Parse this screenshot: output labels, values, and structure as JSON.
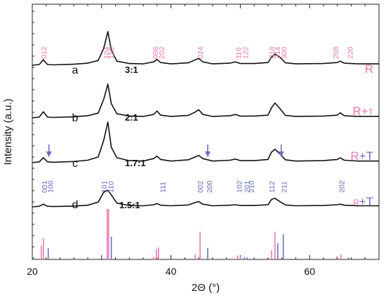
{
  "chart_data": {
    "type": "line",
    "title": "",
    "xlabel": "2Θ (°)",
    "ylabel": "Intensity (a.u.)",
    "xlim": [
      20,
      70
    ],
    "xticks": [
      20,
      40,
      60
    ],
    "yticks_labeled": false,
    "grid": false,
    "colors": {
      "line": "#111111",
      "R": "#e879b0",
      "T": "#6a6fc4",
      "label": "#111111"
    },
    "series": [
      {
        "letter": "a",
        "ratio": "3:1",
        "phase": [
          "R"
        ],
        "x": [
          20,
          21,
          21.6,
          22.2,
          23,
          26,
          28,
          29.5,
          30.3,
          30.9,
          31.4,
          32.2,
          34,
          36,
          37.5,
          38,
          38.5,
          40,
          42.5,
          43.5,
          44,
          44.6,
          46,
          48.5,
          49.3,
          50,
          52,
          54,
          54.5,
          55,
          55.7,
          56.5,
          58,
          62,
          64,
          64.4,
          65,
          67,
          70
        ],
        "y": [
          0,
          0.02,
          0.16,
          0.02,
          0.01,
          0.03,
          0.06,
          0.14,
          0.5,
          1.0,
          0.45,
          0.12,
          0.05,
          0.04,
          0.1,
          0.17,
          0.08,
          0.04,
          0.07,
          0.16,
          0.2,
          0.1,
          0.04,
          0.06,
          0.1,
          0.05,
          0.05,
          0.08,
          0.24,
          0.33,
          0.24,
          0.07,
          0.04,
          0.05,
          0.08,
          0.12,
          0.06,
          0.04,
          0.04
        ],
        "hkl": [
          {
            "label": "012",
            "x": 21.6
          },
          {
            "label": "104",
            "x": 30.7
          },
          {
            "label": "110",
            "x": 31.4
          },
          {
            "label": "006",
            "x": 37.7
          },
          {
            "label": "202",
            "x": 38.6
          },
          {
            "label": "024",
            "x": 44.2
          },
          {
            "label": "116",
            "x": 49.7
          },
          {
            "label": "122",
            "x": 50.7
          },
          {
            "label": "018",
            "x": 54.5
          },
          {
            "label": "214",
            "x": 55.3
          },
          {
            "label": "300",
            "x": 56.3
          },
          {
            "label": "208",
            "x": 63.7
          },
          {
            "label": "220",
            "x": 65.8
          }
        ]
      },
      {
        "letter": "b",
        "ratio": "2:1",
        "phase": [
          "R",
          "+",
          "T"
        ],
        "x": [
          20,
          21,
          21.6,
          22.2,
          23,
          26,
          28,
          29.5,
          30.3,
          30.9,
          31.4,
          32.2,
          34,
          36,
          37.5,
          38,
          38.5,
          40,
          42.5,
          43.5,
          44,
          44.6,
          46,
          48.5,
          49.3,
          50,
          52,
          54,
          54.5,
          55,
          55.7,
          56.5,
          58,
          62,
          64,
          64.4,
          65,
          67,
          70
        ],
        "y": [
          0,
          0.02,
          0.18,
          0.02,
          0.01,
          0.03,
          0.06,
          0.14,
          0.55,
          1.0,
          0.42,
          0.12,
          0.05,
          0.04,
          0.1,
          0.2,
          0.08,
          0.04,
          0.07,
          0.17,
          0.24,
          0.1,
          0.04,
          0.06,
          0.1,
          0.05,
          0.05,
          0.08,
          0.3,
          0.44,
          0.28,
          0.07,
          0.04,
          0.05,
          0.08,
          0.15,
          0.06,
          0.04,
          0.04
        ]
      },
      {
        "letter": "c",
        "ratio": "1.7:1",
        "phase": [
          "R",
          "+",
          "T"
        ],
        "arrows_x": [
          22.4,
          45.3,
          55.9
        ],
        "x": [
          20,
          21,
          21.6,
          22.2,
          23,
          26,
          28,
          29.5,
          30.3,
          30.9,
          31.4,
          32.2,
          34,
          36,
          37.5,
          38,
          38.5,
          40,
          42.5,
          43.5,
          44,
          44.6,
          46,
          48.5,
          49.3,
          50,
          52,
          54,
          54.5,
          55,
          55.7,
          56.5,
          58,
          62,
          64,
          64.4,
          65,
          67,
          70
        ],
        "y": [
          0,
          0.02,
          0.12,
          0.02,
          0.01,
          0.03,
          0.06,
          0.14,
          0.55,
          1.0,
          0.38,
          0.12,
          0.05,
          0.04,
          0.1,
          0.16,
          0.08,
          0.04,
          0.07,
          0.14,
          0.18,
          0.1,
          0.04,
          0.06,
          0.09,
          0.05,
          0.05,
          0.08,
          0.26,
          0.33,
          0.22,
          0.07,
          0.04,
          0.05,
          0.08,
          0.12,
          0.06,
          0.04,
          0.04
        ]
      },
      {
        "letter": "d",
        "ratio": "1.5:1",
        "phase": [
          "R",
          "+",
          "T"
        ],
        "x": [
          20,
          21,
          21.6,
          22.2,
          23,
          26,
          28,
          29.5,
          30.3,
          30.9,
          31.4,
          32.2,
          34,
          36,
          37.5,
          38,
          38.5,
          40,
          42.5,
          43.5,
          44,
          44.6,
          46,
          48.5,
          49.3,
          50,
          52,
          54,
          54.5,
          55,
          55.7,
          56.5,
          58,
          62,
          64,
          64.4,
          65,
          67,
          70
        ],
        "y": [
          0,
          0.02,
          0.1,
          0.02,
          0.01,
          0.03,
          0.06,
          0.18,
          0.55,
          0.62,
          0.45,
          0.14,
          0.05,
          0.04,
          0.08,
          0.12,
          0.06,
          0.04,
          0.07,
          0.16,
          0.2,
          0.1,
          0.04,
          0.06,
          0.08,
          0.05,
          0.05,
          0.08,
          0.28,
          0.32,
          0.2,
          0.07,
          0.04,
          0.05,
          0.08,
          0.1,
          0.06,
          0.04,
          0.04
        ],
        "hkl": [
          {
            "label": "001",
            "x": 21.7
          },
          {
            "label": "100",
            "x": 22.6
          },
          {
            "label": "101",
            "x": 30.3
          },
          {
            "label": "110",
            "x": 31.3
          },
          {
            "label": "111",
            "x": 38.8
          },
          {
            "label": "002",
            "x": 44.2
          },
          {
            "label": "200",
            "x": 45.5
          },
          {
            "label": "102",
            "x": 49.8
          },
          {
            "label": "201",
            "x": 50.9
          },
          {
            "label": "210",
            "x": 51.6
          },
          {
            "label": "112",
            "x": 54.5
          },
          {
            "label": "211",
            "x": 56.3
          },
          {
            "label": "202",
            "x": 64.6
          }
        ]
      }
    ],
    "reference_sticks": [
      {
        "x": 21.3,
        "h": 0.28,
        "phase": "R"
      },
      {
        "x": 21.6,
        "h": 0.42,
        "phase": "R"
      },
      {
        "x": 22.3,
        "h": 0.22,
        "phase": "T"
      },
      {
        "x": 30.8,
        "h": 1.0,
        "phase": "R"
      },
      {
        "x": 31.0,
        "h": 1.0,
        "phase": "R"
      },
      {
        "x": 31.4,
        "h": 0.45,
        "phase": "T"
      },
      {
        "x": 37.5,
        "h": 0.05,
        "phase": "R"
      },
      {
        "x": 37.9,
        "h": 0.2,
        "phase": "R"
      },
      {
        "x": 38.2,
        "h": 0.24,
        "phase": "R"
      },
      {
        "x": 43.5,
        "h": 0.1,
        "phase": "R"
      },
      {
        "x": 44.2,
        "h": 0.55,
        "phase": "R"
      },
      {
        "x": 45.3,
        "h": 0.23,
        "phase": "T"
      },
      {
        "x": 49.6,
        "h": 0.08,
        "phase": "R"
      },
      {
        "x": 50.0,
        "h": 0.06,
        "phase": "R"
      },
      {
        "x": 50.6,
        "h": 0.05,
        "phase": "T"
      },
      {
        "x": 51.0,
        "h": 0.04,
        "phase": "T"
      },
      {
        "x": 54.5,
        "h": 0.18,
        "phase": "R"
      },
      {
        "x": 55.0,
        "h": 0.55,
        "phase": "R"
      },
      {
        "x": 55.4,
        "h": 0.32,
        "phase": "T"
      },
      {
        "x": 56.2,
        "h": 0.5,
        "phase": "T"
      },
      {
        "x": 63.9,
        "h": 0.06,
        "phase": "R"
      },
      {
        "x": 64.5,
        "h": 0.1,
        "phase": "R"
      },
      {
        "x": 65.6,
        "h": 0.04,
        "phase": "T"
      },
      {
        "x": 67.9,
        "h": 0.04,
        "phase": "R"
      }
    ]
  }
}
